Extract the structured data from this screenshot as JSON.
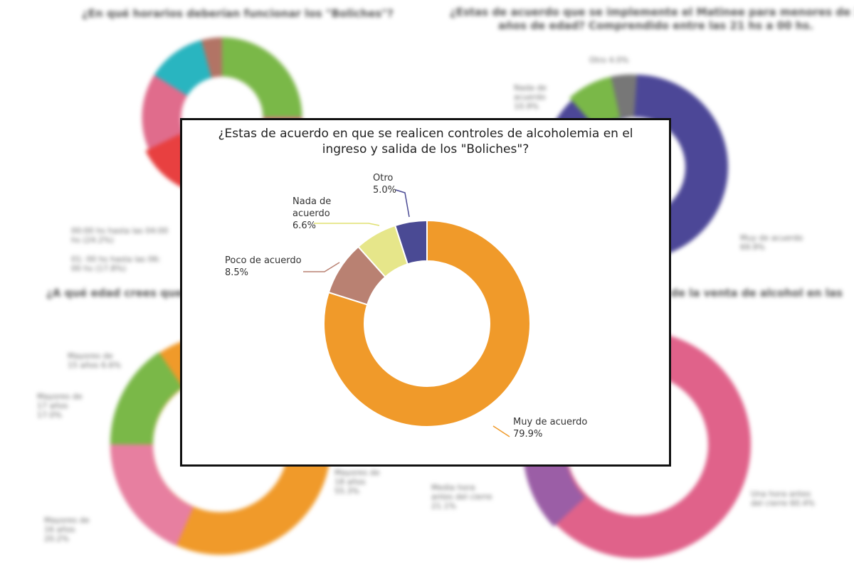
{
  "background": {
    "top_left": {
      "title": "¿En qué horarios deberían funcionar los \"Boliches\"?",
      "legend": [
        "00:00 hs hasta las 04:00 hs (24.2%)",
        "01: 00 hs hasta las 06: 00 hs (17.8%)"
      ]
    },
    "top_right": {
      "title_line1": "¿Estas de acuerdo que se implemente el Matinee para menores de 18",
      "title_line2": "años de edad? Comprendido entre las 21 hs a 00 hs.",
      "labels": [
        "Otro 4.0%",
        "Nada de acuerdo 10.9%",
        "Muy de acuerdo 69.9%"
      ]
    },
    "bottom_left": {
      "title": "¿A qué edad crees que de",
      "labels": [
        "Mayores de 15 años 6.6%",
        "Mayores de 17 años 17.0%",
        "Mayores de 18 años 55.3%",
        "Mayores de 16 años 20.2%"
      ]
    },
    "bottom_right": {
      "title": "de la venta de alcohol en las",
      "labels": [
        "Media hora antes del cierre 21.1%",
        "Una hora antes del cierre 60.4%"
      ]
    }
  },
  "chart_data": {
    "type": "pie",
    "style": "donut",
    "title_line1": "¿Estas de acuerdo en que se realicen controles de alcoholemia en el",
    "title_line2": "ingreso y salida de los \"Boliches\"?",
    "slices": [
      {
        "name": "Muy de acuerdo",
        "value": 79.9,
        "label": "79.9%",
        "color": "#f09a2a"
      },
      {
        "name": "Poco de acuerdo",
        "value": 8.5,
        "label": "8.5%",
        "color": "#b98172"
      },
      {
        "name": "Nada de acuerdo",
        "value": 6.6,
        "label": "6.6%",
        "color": "#e6e68a"
      },
      {
        "name": "Otro",
        "value": 5.0,
        "label": "5.0%",
        "color": "#4a4a94"
      }
    ]
  }
}
